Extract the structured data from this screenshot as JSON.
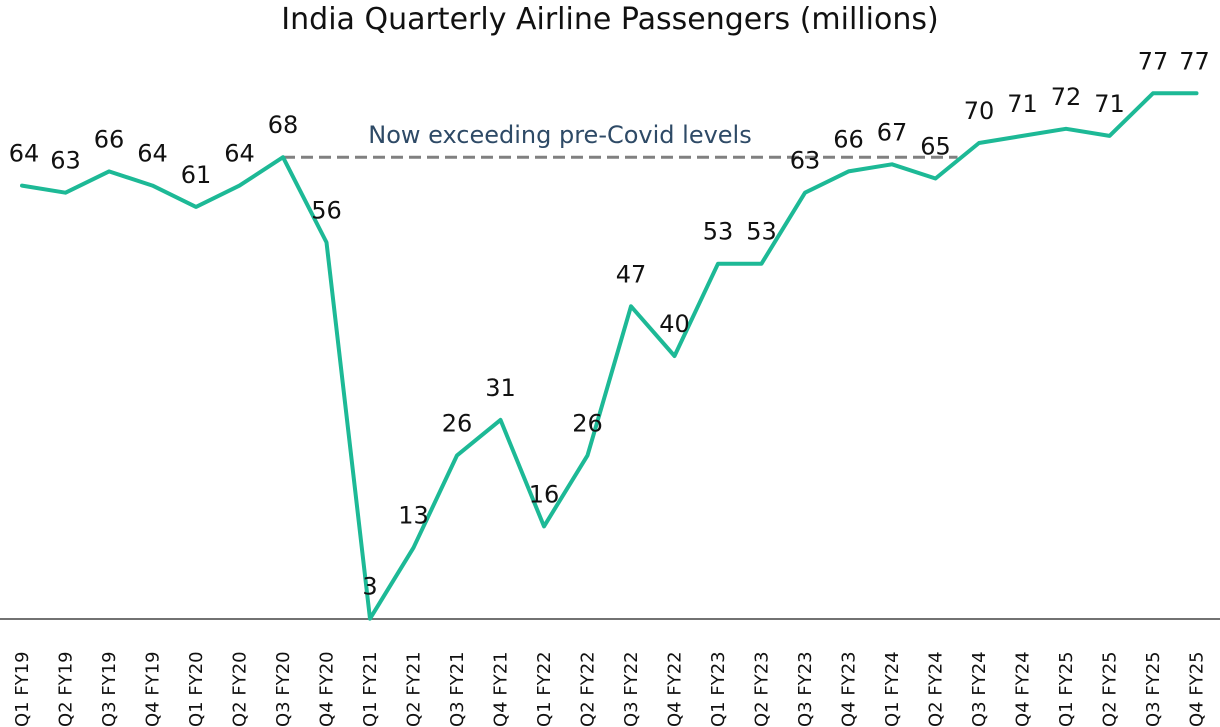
{
  "chart_data": {
    "type": "line",
    "title": "India Quarterly Airline Passengers (millions)",
    "xlabel": "",
    "ylabel": "",
    "ylim": [
      0,
      80
    ],
    "grid": false,
    "legend": "none",
    "categories": [
      "Q1 FY19",
      "Q2 FY19",
      "Q3 FY19",
      "Q4 FY19",
      "Q1 FY20",
      "Q2 FY20",
      "Q3 FY20",
      "Q4 FY20",
      "Q1 FY21",
      "Q2 FY21",
      "Q3 FY21",
      "Q4 FY21",
      "Q1 FY22",
      "Q2 FY22",
      "Q3 FY22",
      "Q4 FY22",
      "Q1 FY23",
      "Q2 FY23",
      "Q3 FY23",
      "Q4 FY23",
      "Q1 FY24",
      "Q2 FY24",
      "Q3 FY24",
      "Q4 FY24",
      "Q1 FY25",
      "Q2 FY25",
      "Q3 FY25",
      "Q4 FY25"
    ],
    "series": [
      {
        "values": [
          64,
          63,
          66,
          64,
          61,
          64,
          68,
          56,
          3,
          13,
          26,
          31,
          16,
          26,
          47,
          40,
          53,
          53,
          63,
          66,
          67,
          65,
          70,
          71,
          72,
          71,
          77,
          77
        ],
        "color": "#1db996"
      }
    ],
    "annotations": [
      {
        "text": "Now exceeding pre-Covid levels",
        "reference_value": 68,
        "from_category": "Q3 FY20",
        "to_category": "Q2 FY24",
        "line_style": "dashed",
        "line_color": "#808080",
        "text_color": "#2e4a66"
      }
    ]
  }
}
